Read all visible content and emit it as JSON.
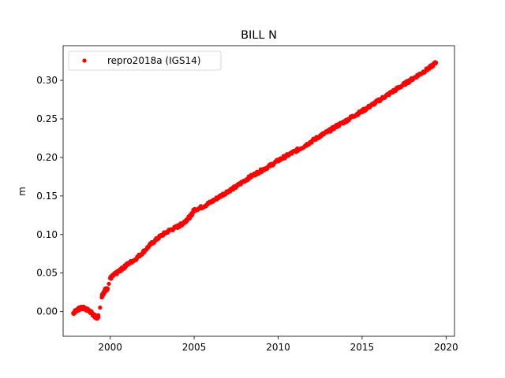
{
  "chart_data": {
    "type": "scatter",
    "title": "BILL N",
    "xlabel": "",
    "ylabel": "m",
    "xlim": [
      1997.2,
      2020.5
    ],
    "ylim": [
      -0.032,
      0.345
    ],
    "xticks": [
      2000,
      2005,
      2010,
      2015,
      2020
    ],
    "xtick_labels": [
      "2000",
      "2005",
      "2010",
      "2015",
      "2020"
    ],
    "yticks": [
      0.0,
      0.05,
      0.1,
      0.15,
      0.2,
      0.25,
      0.3
    ],
    "ytick_labels": [
      "0.00",
      "0.05",
      "0.10",
      "0.15",
      "0.20",
      "0.25",
      "0.30"
    ],
    "grid": false,
    "legend_position": "top-left",
    "series": [
      {
        "name": "repro2018a (IGS14)",
        "color": "#ff0000",
        "marker": "dot",
        "x": [
          1997.8,
          1998.0,
          1998.2,
          1998.4,
          1998.6,
          1998.8,
          1999.0,
          1999.2,
          1999.3,
          1999.5,
          1999.6,
          1999.7,
          1999.85,
          2000.0,
          2000.2,
          2000.5,
          2000.8,
          2001.0,
          2001.5,
          2002.0,
          2002.5,
          2003.0,
          2003.5,
          2004.0,
          2004.3,
          2004.5,
          2004.8,
          2005.0,
          2005.5,
          2006.0,
          2006.5,
          2007.0,
          2007.5,
          2008.0,
          2008.5,
          2009.0,
          2009.5,
          2010.0,
          2010.5,
          2011.0,
          2011.5,
          2012.0,
          2012.5,
          2013.0,
          2013.5,
          2014.0,
          2014.5,
          2015.0,
          2015.5,
          2016.0,
          2016.5,
          2017.0,
          2017.5,
          2018.0,
          2018.5,
          2019.0,
          2019.4
        ],
        "y": [
          -0.002,
          0.002,
          0.004,
          0.005,
          0.003,
          0.0,
          -0.004,
          -0.008,
          -0.006,
          0.02,
          0.024,
          0.028,
          0.03,
          0.043,
          0.047,
          0.052,
          0.057,
          0.061,
          0.068,
          0.078,
          0.089,
          0.098,
          0.105,
          0.11,
          0.114,
          0.118,
          0.124,
          0.132,
          0.136,
          0.142,
          0.149,
          0.156,
          0.162,
          0.17,
          0.177,
          0.183,
          0.189,
          0.196,
          0.202,
          0.208,
          0.214,
          0.221,
          0.228,
          0.234,
          0.241,
          0.247,
          0.254,
          0.26,
          0.267,
          0.274,
          0.281,
          0.288,
          0.295,
          0.302,
          0.309,
          0.316,
          0.323
        ]
      }
    ]
  }
}
